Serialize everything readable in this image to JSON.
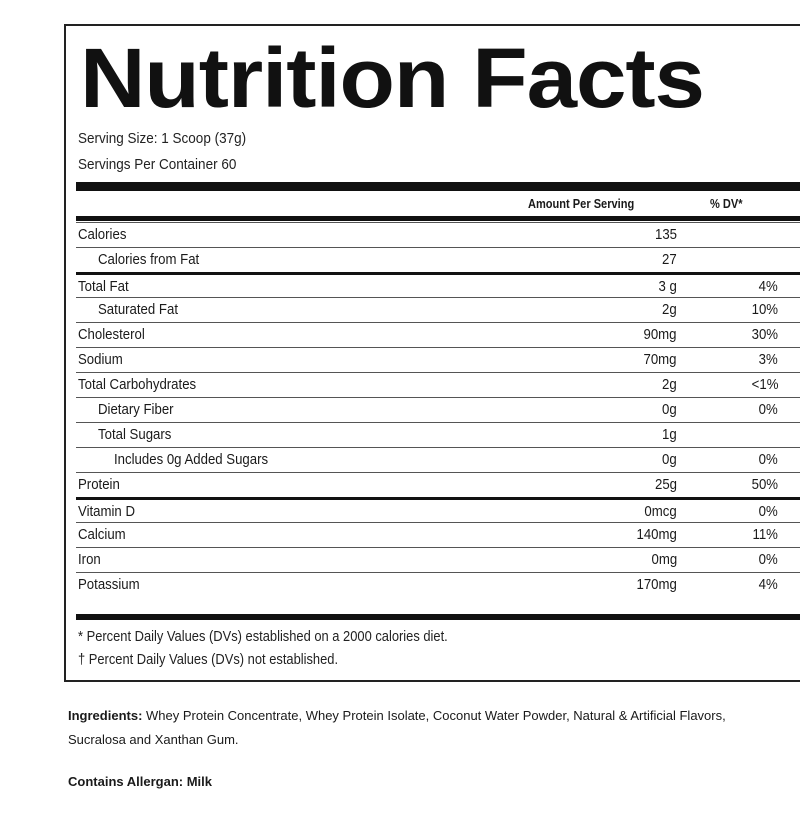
{
  "label": {
    "title": "Nutrition Facts",
    "serving_size": "Serving Size: 1 Scoop (37g)",
    "servings_per_container": "Servings Per Container 60",
    "col_amount": "Amount Per Serving",
    "col_dv": "% DV*",
    "rows": [
      {
        "name": "Calories",
        "amount": "135",
        "dv": "",
        "indent": 0
      },
      {
        "name": "Calories from Fat",
        "amount": "27",
        "dv": "",
        "indent": 1
      },
      {
        "name": "Total Fat",
        "amount": "3 g",
        "dv": "4%",
        "indent": 0
      },
      {
        "name": "Saturated Fat",
        "amount": "2g",
        "dv": "10%",
        "indent": 1
      },
      {
        "name": "Cholesterol",
        "amount": "90mg",
        "dv": "30%",
        "indent": 0
      },
      {
        "name": "Sodium",
        "amount": "70mg",
        "dv": "3%",
        "indent": 0
      },
      {
        "name": "Total Carbohydrates",
        "amount": "2g",
        "dv": "<1%",
        "indent": 0
      },
      {
        "name": "Dietary Fiber",
        "amount": "0g",
        "dv": "0%",
        "indent": 1
      },
      {
        "name": "Total Sugars",
        "amount": "1g",
        "dv": "",
        "indent": 1
      },
      {
        "name": "Includes 0g Added Sugars",
        "amount": "0g",
        "dv": "0%",
        "indent": 2
      },
      {
        "name": "Protein",
        "amount": "25g",
        "dv": "50%",
        "indent": 0
      },
      {
        "name": "Vitamin D",
        "amount": "0mcg",
        "dv": "0%",
        "indent": 0
      },
      {
        "name": "Calcium",
        "amount": "140mg",
        "dv": "11%",
        "indent": 0
      },
      {
        "name": "Iron",
        "amount": "0mg",
        "dv": "0%",
        "indent": 0
      },
      {
        "name": "Potassium",
        "amount": "170mg",
        "dv": "4%",
        "indent": 0
      }
    ],
    "footnote_1": "* Percent Daily Values (DVs) established on a 2000 calories diet.",
    "footnote_2": "† Percent Daily Values (DVs) not established."
  },
  "ingredients": {
    "label": "Ingredients:",
    "text": " Whey Protein Concentrate, Whey Protein Isolate, Coconut Water Powder, Natural & Artificial Flavors, Sucralosa and Xanthan Gum."
  },
  "allergen": "Contains Allergan: Milk"
}
